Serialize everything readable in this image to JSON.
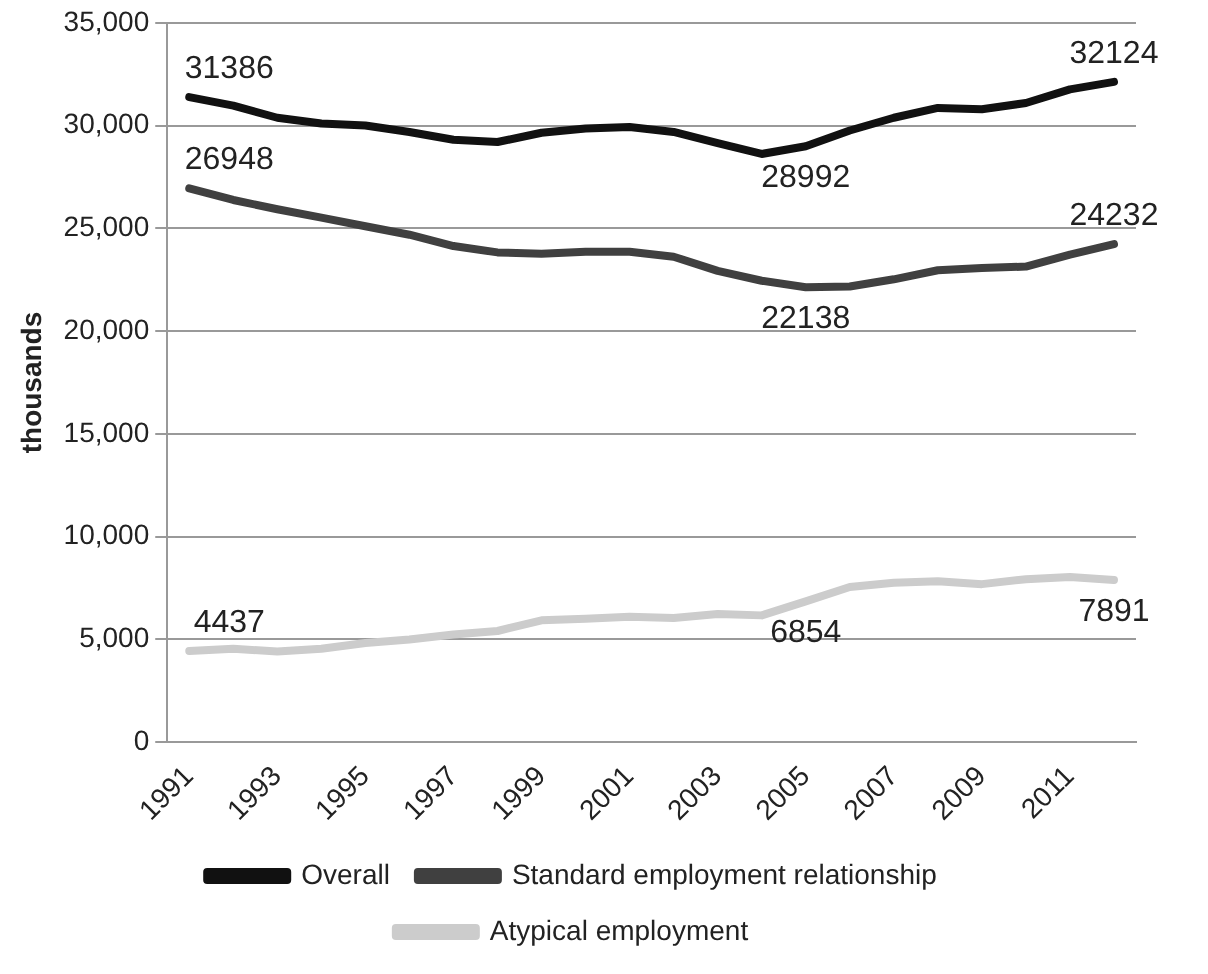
{
  "chart_data": {
    "type": "line",
    "ylabel": "thousands",
    "categories": [
      "1991",
      null,
      "1993",
      null,
      "1995",
      null,
      "1997",
      null,
      "1999",
      null,
      "2001",
      null,
      "2003",
      null,
      "2005",
      null,
      "2007",
      null,
      "2009",
      null,
      "2011",
      null
    ],
    "series": [
      {
        "name": "Overall",
        "color": "#111111",
        "values": [
          31386,
          30970,
          30380,
          30100,
          30000,
          29690,
          29310,
          29200,
          29650,
          29860,
          29930,
          29690,
          29140,
          28620,
          28992,
          29760,
          30380,
          30860,
          30790,
          31100,
          31760,
          32124
        ],
        "value_labels": [
          "31386",
          null,
          null,
          null,
          null,
          null,
          null,
          null,
          null,
          null,
          null,
          null,
          null,
          null,
          "28992",
          null,
          null,
          null,
          null,
          null,
          null,
          "32124"
        ]
      },
      {
        "name": "Standard employment relationship",
        "color": "#404040",
        "values": [
          26948,
          26380,
          25930,
          25520,
          25100,
          24690,
          24140,
          23830,
          23760,
          23860,
          23860,
          23620,
          22930,
          22450,
          22138,
          22170,
          22520,
          22960,
          23070,
          23140,
          23720,
          24232
        ],
        "value_labels": [
          "26948",
          null,
          null,
          null,
          null,
          null,
          null,
          null,
          null,
          null,
          null,
          null,
          null,
          null,
          "22138",
          null,
          null,
          null,
          null,
          null,
          null,
          "24232"
        ]
      },
      {
        "name": "Atypical employment",
        "color": "#cccccc",
        "values": [
          4437,
          4550,
          4410,
          4550,
          4830,
          5000,
          5240,
          5410,
          5930,
          6000,
          6100,
          6040,
          6240,
          6170,
          6854,
          7550,
          7760,
          7830,
          7690,
          7930,
          8040,
          7891
        ],
        "value_labels": [
          "4437",
          null,
          null,
          null,
          null,
          null,
          null,
          null,
          null,
          null,
          null,
          null,
          null,
          null,
          "6854",
          null,
          null,
          null,
          null,
          null,
          null,
          "7891"
        ]
      }
    ],
    "ylim": [
      0,
      35000
    ],
    "yticks": [
      {
        "value": 0,
        "label": "0"
      },
      {
        "value": 5000,
        "label": "5,000"
      },
      {
        "value": 10000,
        "label": "10,000"
      },
      {
        "value": 15000,
        "label": "15,000"
      },
      {
        "value": 20000,
        "label": "20,000"
      },
      {
        "value": 25000,
        "label": "25,000"
      },
      {
        "value": 30000,
        "label": "30,000"
      },
      {
        "value": 35000,
        "label": "35,000"
      }
    ],
    "grid": "y",
    "legend": "bottom",
    "marker": "none",
    "line_style": "solid"
  }
}
